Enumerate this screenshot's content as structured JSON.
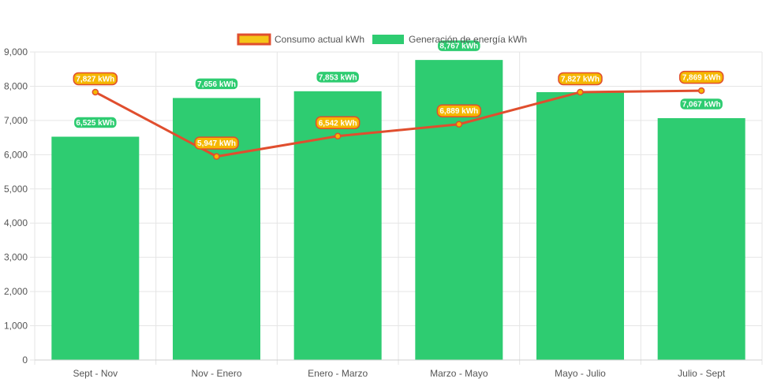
{
  "chart_data": {
    "type": "bar",
    "categories": [
      "Sept - Nov",
      "Nov - Enero",
      "Enero - Marzo",
      "Marzo - Mayo",
      "Mayo - Julio",
      "Julio - Sept"
    ],
    "series": [
      {
        "name": "Consumo actual kWh",
        "type": "line",
        "values": [
          7827,
          5947,
          6542,
          6889,
          7827,
          7869
        ],
        "labels": [
          "7,827 kWh",
          "5,947 kWh",
          "6,542 kWh",
          "6,889 kWh",
          "7,827 kWh",
          "7,869 kWh"
        ]
      },
      {
        "name": "Generación de energía kWh",
        "type": "bar",
        "values": [
          6525,
          7656,
          7853,
          8767,
          7827,
          7067
        ],
        "labels": [
          "6,525 kWh",
          "7,656 kWh",
          "7,853 kWh",
          "8,767 kWh",
          "7,827 kWh",
          "7,067 kWh"
        ]
      }
    ],
    "ylim": [
      0,
      9000
    ],
    "yticks": [
      "0",
      "1,000",
      "2,000",
      "3,000",
      "4,000",
      "5,000",
      "6,000",
      "7,000",
      "8,000",
      "9,000"
    ],
    "grid": true,
    "legend_position": "top",
    "colors": {
      "bar": "#2ecc71",
      "line": "#e04e2e",
      "line_label_bg": "#f5b800",
      "legend_line_fill": "#f5c518",
      "grid": "#e5e5e5",
      "text": "#555555"
    }
  }
}
